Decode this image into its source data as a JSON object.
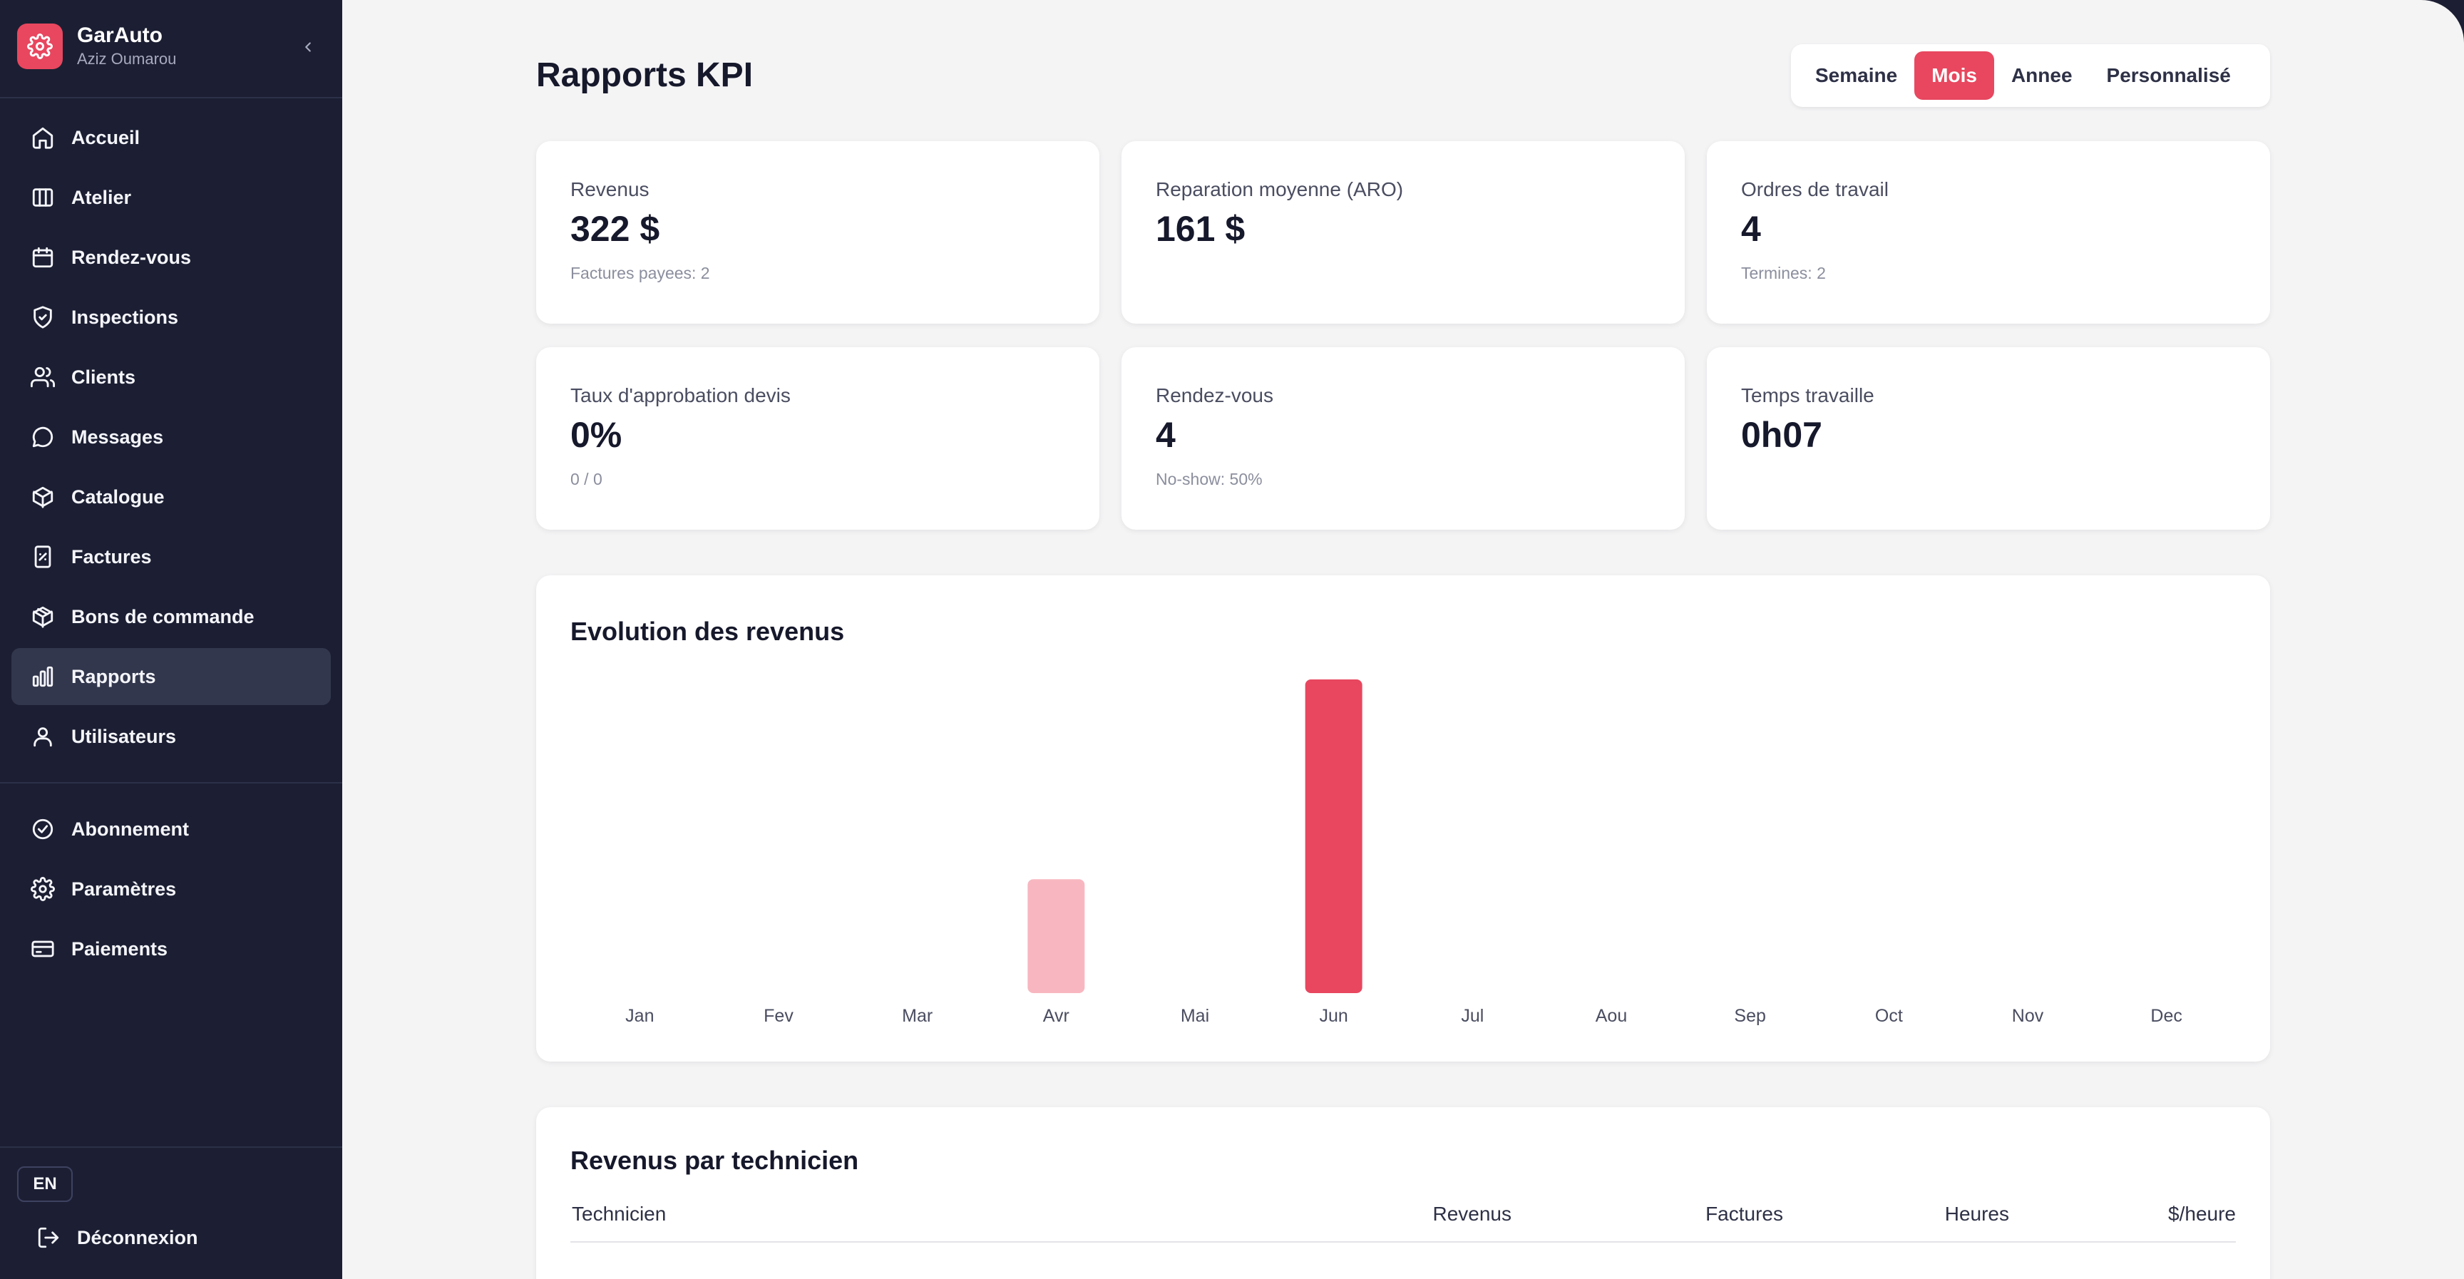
{
  "brand": {
    "name": "GarAuto",
    "user": "Aziz Oumarou"
  },
  "sidebar": {
    "items": [
      {
        "label": "Accueil",
        "icon": "home-icon"
      },
      {
        "label": "Atelier",
        "icon": "columns-icon"
      },
      {
        "label": "Rendez-vous",
        "icon": "calendar-icon"
      },
      {
        "label": "Inspections",
        "icon": "shield-check-icon"
      },
      {
        "label": "Clients",
        "icon": "users-icon"
      },
      {
        "label": "Messages",
        "icon": "message-icon"
      },
      {
        "label": "Catalogue",
        "icon": "box-icon"
      },
      {
        "label": "Factures",
        "icon": "receipt-icon"
      },
      {
        "label": "Bons de commande",
        "icon": "package-icon"
      },
      {
        "label": "Rapports",
        "icon": "bar-chart-icon",
        "active": true
      },
      {
        "label": "Utilisateurs",
        "icon": "user-icon"
      }
    ],
    "secondary": [
      {
        "label": "Abonnement",
        "icon": "check-circle-icon"
      },
      {
        "label": "Paramètres",
        "icon": "gear-icon"
      },
      {
        "label": "Paiements",
        "icon": "credit-card-icon"
      }
    ],
    "lang": "EN",
    "logout": "Déconnexion"
  },
  "header": {
    "title": "Rapports KPI",
    "periods": [
      "Semaine",
      "Mois",
      "Annee",
      "Personnalisé"
    ],
    "active_period": "Mois"
  },
  "kpis": [
    {
      "label": "Revenus",
      "value": "322 $",
      "sub": "Factures payees: 2"
    },
    {
      "label": "Reparation moyenne (ARO)",
      "value": "161 $",
      "sub": ""
    },
    {
      "label": "Ordres de travail",
      "value": "4",
      "sub": "Termines: 2"
    },
    {
      "label": "Taux d'approbation devis",
      "value": "0%",
      "sub": "0 / 0"
    },
    {
      "label": "Rendez-vous",
      "value": "4",
      "sub": "No-show: 50%"
    },
    {
      "label": "Temps travaille",
      "value": "0h07",
      "sub": ""
    }
  ],
  "chart_data": {
    "type": "bar",
    "title": "Evolution des revenus",
    "categories": [
      "Jan",
      "Fev",
      "Mar",
      "Avr",
      "Mai",
      "Jun",
      "Jul",
      "Aou",
      "Sep",
      "Oct",
      "Nov",
      "Dec"
    ],
    "values": [
      0,
      0,
      0,
      69,
      0,
      190,
      0,
      0,
      0,
      0,
      0,
      0
    ],
    "highlight": "Jun",
    "bar_color": "#e8475f",
    "bar_color_muted": "#f8b7c0",
    "xlabel": "",
    "ylabel": "",
    "ylim": [
      0,
      190
    ],
    "grid": false
  },
  "tech_table": {
    "title": "Revenus par technicien",
    "columns": [
      "Technicien",
      "Revenus",
      "Factures",
      "Heures",
      "$/heure"
    ]
  },
  "colors": {
    "accent": "#e8475f",
    "sidebar": "#1c1f33",
    "background": "#f4f4f5"
  }
}
